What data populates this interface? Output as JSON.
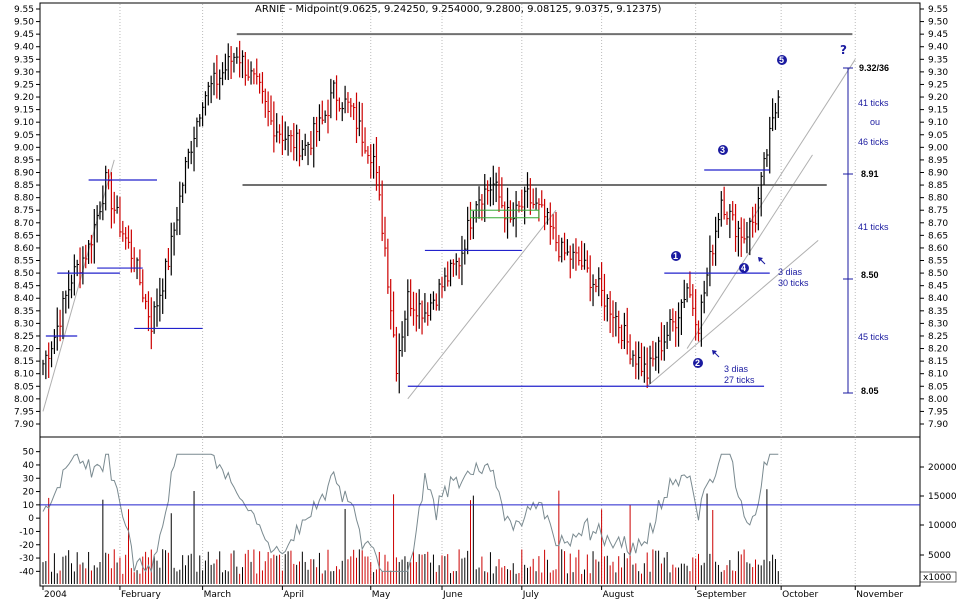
{
  "title": "ARNIE - Midpoint(9.0625, 9.24250, 9.254000, 9.2800, 9.08125, 9.0375, 9.12375)",
  "chart_data": [
    {
      "type": "ohlc",
      "price_axis": {
        "ylim": [
          7.9,
          9.55
        ],
        "ticks": [
          "7.90",
          "7.95",
          "8.00",
          "8.05",
          "8.10",
          "8.15",
          "8.20",
          "8.25",
          "8.30",
          "8.35",
          "8.40",
          "8.45",
          "8.50",
          "8.55",
          "8.60",
          "8.65",
          "8.70",
          "8.75",
          "8.80",
          "8.85",
          "8.90",
          "8.95",
          "9.00",
          "9.05",
          "9.10",
          "9.15",
          "9.20",
          "9.25",
          "9.30",
          "9.35",
          "9.40",
          "9.45",
          "9.50",
          "9.55"
        ]
      },
      "colors": {
        "up": "#000000",
        "down": "#cc0000",
        "levels": "#2222cc",
        "resistance": "#707070",
        "trend": "#b0b0b0",
        "box": "#33aa33"
      },
      "anchors": [
        {
          "i": 0,
          "v": 8.14
        },
        {
          "i": 4,
          "v": 8.25
        },
        {
          "i": 10,
          "v": 8.48
        },
        {
          "i": 16,
          "v": 8.6
        },
        {
          "i": 22,
          "v": 8.86
        },
        {
          "i": 26,
          "v": 8.72
        },
        {
          "i": 32,
          "v": 8.55
        },
        {
          "i": 38,
          "v": 8.3
        },
        {
          "i": 44,
          "v": 8.55
        },
        {
          "i": 50,
          "v": 8.92
        },
        {
          "i": 56,
          "v": 9.2
        },
        {
          "i": 62,
          "v": 9.28
        },
        {
          "i": 68,
          "v": 9.38
        },
        {
          "i": 72,
          "v": 9.3
        },
        {
          "i": 76,
          "v": 9.22
        },
        {
          "i": 80,
          "v": 9.1
        },
        {
          "i": 86,
          "v": 9.03
        },
        {
          "i": 92,
          "v": 9.0
        },
        {
          "i": 98,
          "v": 9.1
        },
        {
          "i": 102,
          "v": 9.22
        },
        {
          "i": 108,
          "v": 9.15
        },
        {
          "i": 112,
          "v": 9.05
        },
        {
          "i": 116,
          "v": 8.96
        },
        {
          "i": 120,
          "v": 8.6
        },
        {
          "i": 124,
          "v": 8.14
        },
        {
          "i": 128,
          "v": 8.4
        },
        {
          "i": 134,
          "v": 8.35
        },
        {
          "i": 140,
          "v": 8.45
        },
        {
          "i": 146,
          "v": 8.55
        },
        {
          "i": 152,
          "v": 8.8
        },
        {
          "i": 158,
          "v": 8.85
        },
        {
          "i": 164,
          "v": 8.7
        },
        {
          "i": 170,
          "v": 8.8
        },
        {
          "i": 176,
          "v": 8.72
        },
        {
          "i": 182,
          "v": 8.58
        },
        {
          "i": 188,
          "v": 8.55
        },
        {
          "i": 194,
          "v": 8.45
        },
        {
          "i": 200,
          "v": 8.35
        },
        {
          "i": 206,
          "v": 8.2
        },
        {
          "i": 212,
          "v": 8.1
        },
        {
          "i": 216,
          "v": 8.2
        },
        {
          "i": 222,
          "v": 8.32
        },
        {
          "i": 226,
          "v": 8.45
        },
        {
          "i": 230,
          "v": 8.3
        },
        {
          "i": 234,
          "v": 8.55
        },
        {
          "i": 238,
          "v": 8.8
        },
        {
          "i": 242,
          "v": 8.7
        },
        {
          "i": 246,
          "v": 8.65
        },
        {
          "i": 250,
          "v": 8.72
        },
        {
          "i": 254,
          "v": 8.98
        },
        {
          "i": 258,
          "v": 9.2
        }
      ],
      "bar_count": 259,
      "levels": [
        {
          "from": 1,
          "to": 12,
          "value": 8.25
        },
        {
          "from": 5,
          "to": 27,
          "value": 8.5
        },
        {
          "from": 16,
          "to": 40,
          "value": 8.87
        },
        {
          "from": 19,
          "to": 35,
          "value": 8.52
        },
        {
          "from": 32,
          "to": 56,
          "value": 8.28
        },
        {
          "from": 134,
          "to": 168,
          "value": 8.59
        },
        {
          "from": 128,
          "to": 253,
          "value": 8.05
        },
        {
          "from": 218,
          "to": 255,
          "value": 8.5
        },
        {
          "from": 232,
          "to": 255,
          "value": 8.91
        }
      ],
      "resistance": [
        {
          "from": 68,
          "to": 284,
          "value": 9.45
        },
        {
          "from": 70,
          "to": 275,
          "value": 8.85
        }
      ],
      "trendlines": [
        {
          "from": 0,
          "v1": 7.95,
          "to": 25,
          "v2": 8.95
        },
        {
          "from": 128,
          "v1": 8.0,
          "to": 180,
          "v2": 8.75
        },
        {
          "from": 212,
          "v1": 8.05,
          "to": 272,
          "v2": 8.63
        },
        {
          "from": 226,
          "v1": 8.2,
          "to": 270,
          "v2": 8.97
        },
        {
          "from": 248,
          "v1": 8.7,
          "to": 285,
          "v2": 9.35
        }
      ],
      "box": {
        "from": 150,
        "to": 174,
        "top": 8.75,
        "bottom": 8.72
      },
      "time_axis": {
        "months": [
          "2004",
          "February",
          "March",
          "April",
          "May",
          "June",
          "July",
          "August",
          "September",
          "October",
          "November"
        ],
        "month_start_bars": [
          0,
          27,
          56,
          84,
          115,
          140,
          168,
          196,
          229,
          259,
          285
        ]
      },
      "annotations": {
        "circle_1": "1",
        "circle_2": "2",
        "circle_3": "3",
        "circle_4": "4",
        "circle_5": "5",
        "question": "?",
        "dias_a": "3 dias",
        "ticks_a": "27 ticks",
        "dias_b": "3 dias",
        "ticks_b": "30 ticks",
        "p1": "9.32/36",
        "p2": "8.91",
        "p3": "8.50",
        "p4": "8.05",
        "t1": "41 ticks",
        "t2": "ou",
        "t3": "46 ticks",
        "t4": "41 ticks",
        "t5": "45 ticks"
      }
    },
    {
      "type": "volume_and_oscillator",
      "left_axis": {
        "ylim": [
          -45,
          55
        ],
        "ticks": [
          "50",
          "40",
          "30",
          "20",
          "10",
          "0",
          "-10",
          "-20",
          "-30",
          "-40"
        ],
        "reference": 10
      },
      "right_axis": {
        "ticks": [
          "20000",
          "15000",
          "10000",
          "5000"
        ],
        "multiplier": "x1000"
      }
    }
  ]
}
